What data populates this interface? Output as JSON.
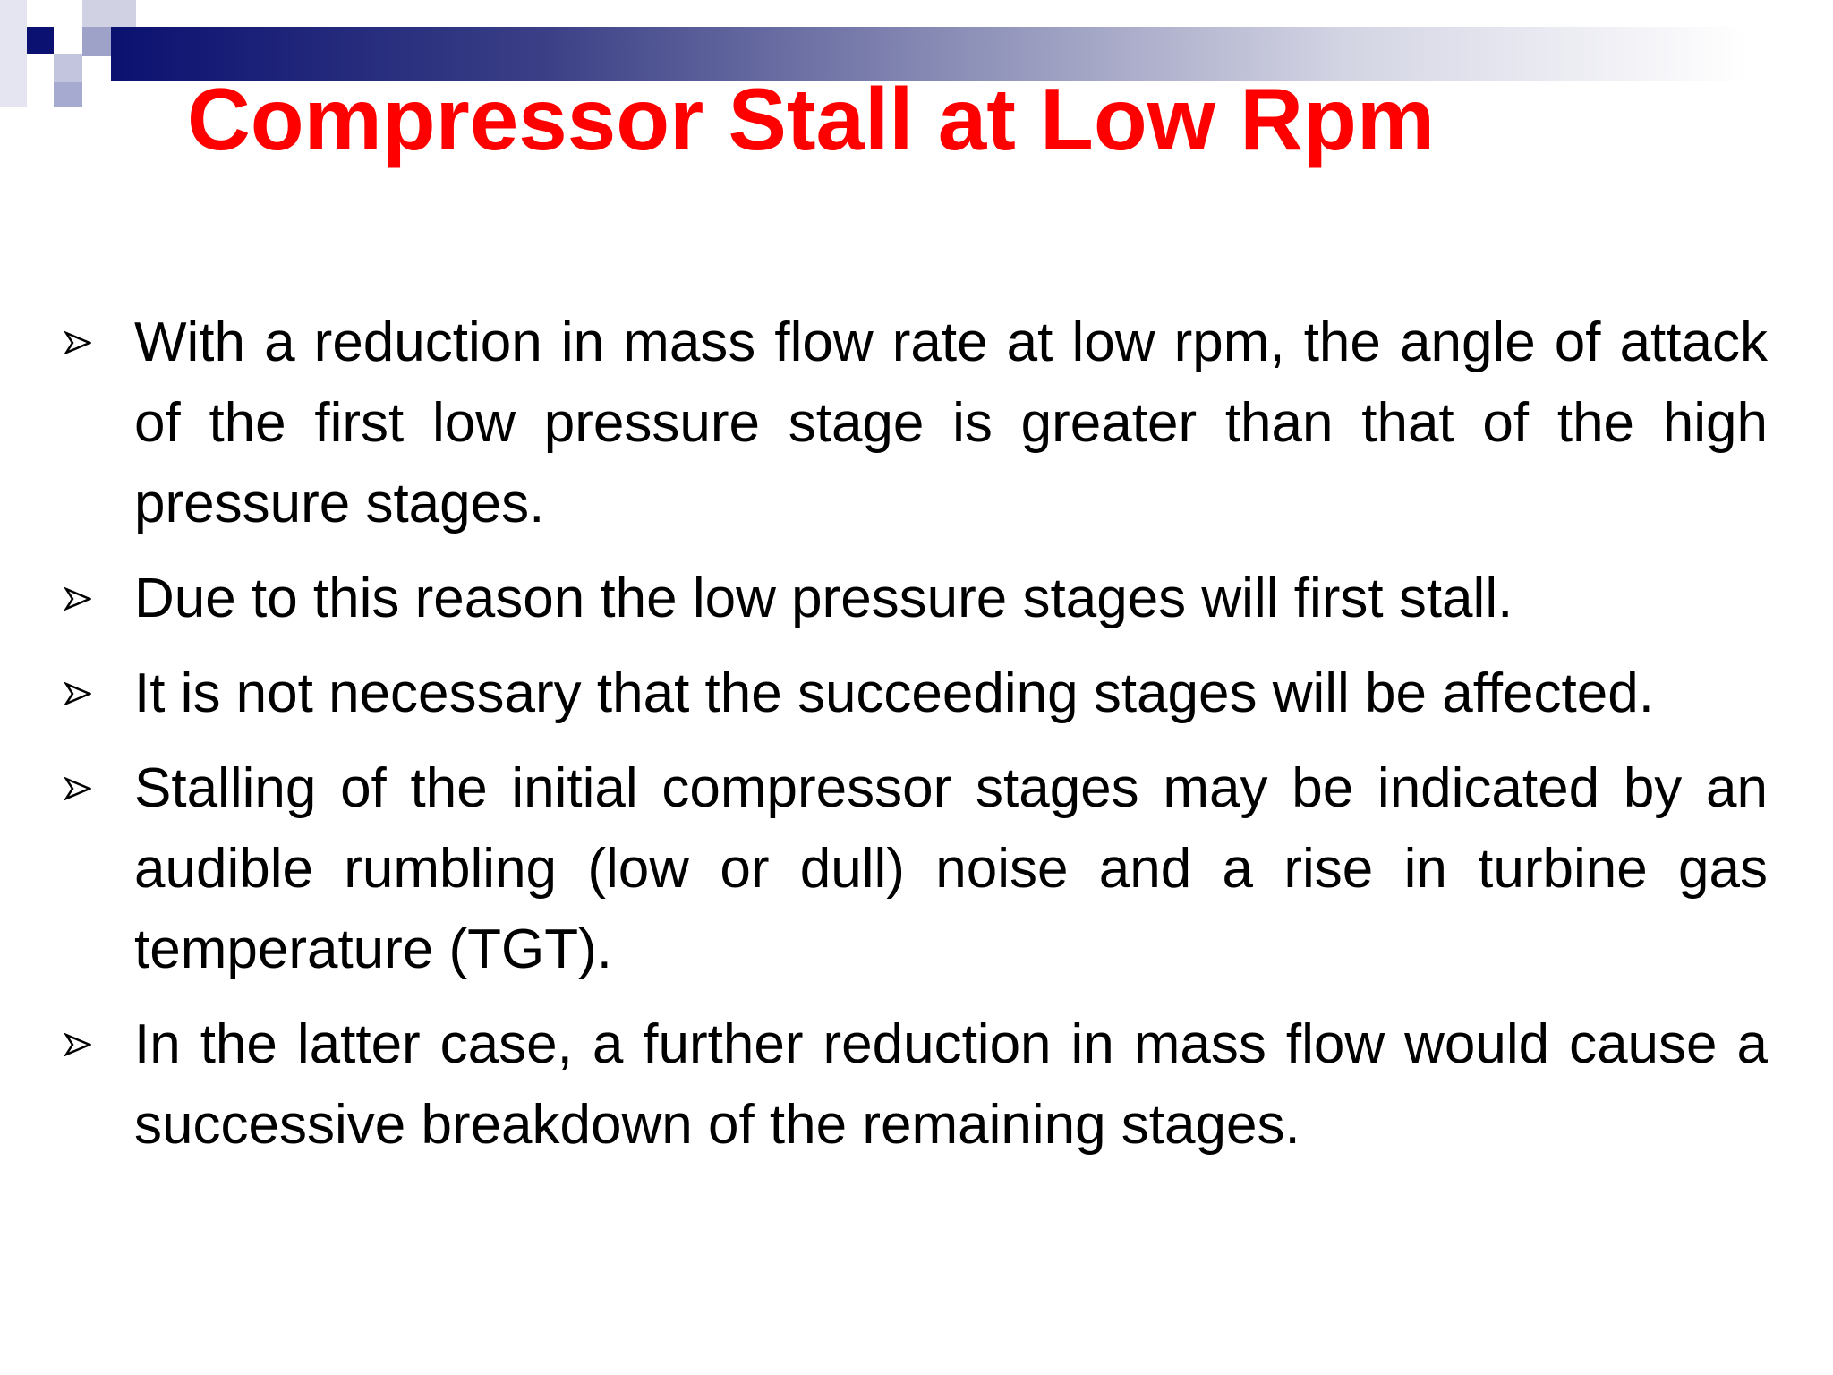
{
  "header": {
    "title": "Compressor Stall at Low Rpm"
  },
  "bullets": [
    "With a reduction in mass flow rate at low rpm, the angle of attack of the first low pressure stage is greater than that of the high pressure stages.",
    "Due to this reason the low pressure stages will first stall.",
    "It is not necessary that the succeeding stages will be affected.",
    "Stalling of the initial compressor stages may be indicated by an audible rumbling (low or dull)  noise and a rise in turbine gas temperature (TGT).",
    "In the latter case, a further reduction in mass flow would cause a successive breakdown of the remaining stages."
  ]
}
